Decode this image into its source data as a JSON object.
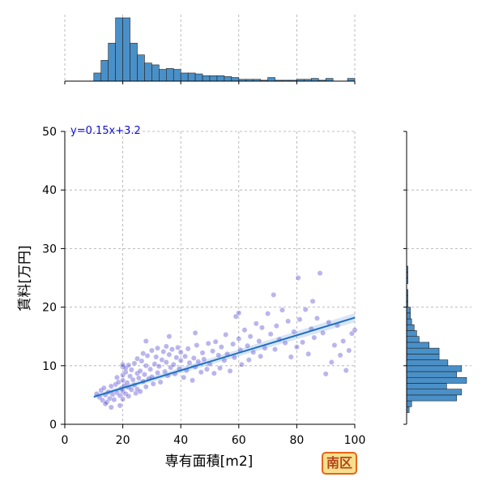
{
  "chart_data": {
    "type": "scatter",
    "title": "",
    "xlabel": "専有面積[m2]",
    "ylabel": "賃料[万円]",
    "xlim": [
      0,
      100
    ],
    "ylim": [
      0,
      50
    ],
    "xticks": [
      "0",
      "20",
      "40",
      "60",
      "80",
      "100"
    ],
    "yticks": [
      "0",
      "10",
      "20",
      "30",
      "40",
      "50"
    ],
    "grid": true,
    "regression": {
      "label": "y=0.15x+3.2",
      "slope": 0.15,
      "intercept": 3.2,
      "x_range": [
        10,
        100
      ]
    },
    "points": [
      {
        "x": 11,
        "y": 5.2
      },
      {
        "x": 12,
        "y": 4.6
      },
      {
        "x": 12.5,
        "y": 5.8
      },
      {
        "x": 13,
        "y": 4.1
      },
      {
        "x": 13.5,
        "y": 6.2
      },
      {
        "x": 14,
        "y": 5.0
      },
      {
        "x": 14.5,
        "y": 3.8
      },
      {
        "x": 15,
        "y": 5.5
      },
      {
        "x": 15.5,
        "y": 4.4
      },
      {
        "x": 16,
        "y": 6.5
      },
      {
        "x": 16.5,
        "y": 5.1
      },
      {
        "x": 17,
        "y": 4.2
      },
      {
        "x": 17.5,
        "y": 6.8
      },
      {
        "x": 18,
        "y": 5.4
      },
      {
        "x": 18.5,
        "y": 7.2
      },
      {
        "x": 19,
        "y": 4.9
      },
      {
        "x": 19.5,
        "y": 6.1
      },
      {
        "x": 20,
        "y": 5.6
      },
      {
        "x": 20,
        "y": 7.5
      },
      {
        "x": 20,
        "y": 9.8
      },
      {
        "x": 20,
        "y": 10.2
      },
      {
        "x": 20,
        "y": 8.4
      },
      {
        "x": 20,
        "y": 4.3
      },
      {
        "x": 20.5,
        "y": 6.6
      },
      {
        "x": 21,
        "y": 5.2
      },
      {
        "x": 21,
        "y": 8.9
      },
      {
        "x": 21,
        "y": 9.6
      },
      {
        "x": 21.5,
        "y": 7.1
      },
      {
        "x": 22,
        "y": 6.3
      },
      {
        "x": 22,
        "y": 10.1
      },
      {
        "x": 22,
        "y": 4.8
      },
      {
        "x": 22.5,
        "y": 8.2
      },
      {
        "x": 23,
        "y": 5.9
      },
      {
        "x": 23,
        "y": 9.3
      },
      {
        "x": 23.5,
        "y": 7.6
      },
      {
        "x": 24,
        "y": 6.7
      },
      {
        "x": 24,
        "y": 10.4
      },
      {
        "x": 24.5,
        "y": 5.3
      },
      {
        "x": 25,
        "y": 8.7
      },
      {
        "x": 25,
        "y": 6.0
      },
      {
        "x": 25,
        "y": 11.2
      },
      {
        "x": 25.5,
        "y": 7.9
      },
      {
        "x": 26,
        "y": 9.1
      },
      {
        "x": 26,
        "y": 5.6
      },
      {
        "x": 26.5,
        "y": 10.8
      },
      {
        "x": 27,
        "y": 7.3
      },
      {
        "x": 27,
        "y": 12.1
      },
      {
        "x": 27.5,
        "y": 8.5
      },
      {
        "x": 28,
        "y": 6.4
      },
      {
        "x": 28,
        "y": 10.0
      },
      {
        "x": 28.5,
        "y": 11.7
      },
      {
        "x": 29,
        "y": 7.8
      },
      {
        "x": 29.5,
        "y": 9.4
      },
      {
        "x": 30,
        "y": 8.1
      },
      {
        "x": 30,
        "y": 12.6
      },
      {
        "x": 30.5,
        "y": 6.9
      },
      {
        "x": 31,
        "y": 10.3
      },
      {
        "x": 31.5,
        "y": 11.5
      },
      {
        "x": 32,
        "y": 8.8
      },
      {
        "x": 32,
        "y": 13.0
      },
      {
        "x": 32.5,
        "y": 9.9
      },
      {
        "x": 33,
        "y": 7.2
      },
      {
        "x": 33.5,
        "y": 11.0
      },
      {
        "x": 34,
        "y": 12.4
      },
      {
        "x": 34.5,
        "y": 9.0
      },
      {
        "x": 35,
        "y": 10.6
      },
      {
        "x": 35,
        "y": 13.3
      },
      {
        "x": 35.5,
        "y": 8.3
      },
      {
        "x": 36,
        "y": 11.9
      },
      {
        "x": 36.5,
        "y": 9.7
      },
      {
        "x": 37,
        "y": 12.8
      },
      {
        "x": 37.5,
        "y": 10.2
      },
      {
        "x": 38,
        "y": 8.6
      },
      {
        "x": 38.5,
        "y": 11.4
      },
      {
        "x": 39,
        "y": 13.1
      },
      {
        "x": 39.5,
        "y": 9.5
      },
      {
        "x": 40,
        "y": 10.9
      },
      {
        "x": 40,
        "y": 12.3
      },
      {
        "x": 41,
        "y": 8.0
      },
      {
        "x": 41.5,
        "y": 11.6
      },
      {
        "x": 42,
        "y": 9.2
      },
      {
        "x": 42.5,
        "y": 12.9
      },
      {
        "x": 43,
        "y": 10.5
      },
      {
        "x": 44,
        "y": 7.5
      },
      {
        "x": 44.5,
        "y": 11.3
      },
      {
        "x": 45,
        "y": 9.8
      },
      {
        "x": 45.5,
        "y": 13.5
      },
      {
        "x": 46,
        "y": 10.7
      },
      {
        "x": 47,
        "y": 8.9
      },
      {
        "x": 47.5,
        "y": 12.2
      },
      {
        "x": 48,
        "y": 11.1
      },
      {
        "x": 49,
        "y": 9.4
      },
      {
        "x": 49.5,
        "y": 13.8
      },
      {
        "x": 50,
        "y": 10.3
      },
      {
        "x": 51,
        "y": 12.5
      },
      {
        "x": 51.5,
        "y": 8.7
      },
      {
        "x": 52,
        "y": 14.1
      },
      {
        "x": 53,
        "y": 11.8
      },
      {
        "x": 53.5,
        "y": 9.6
      },
      {
        "x": 54,
        "y": 13.2
      },
      {
        "x": 55,
        "y": 10.9
      },
      {
        "x": 55.5,
        "y": 15.3
      },
      {
        "x": 56,
        "y": 12.0
      },
      {
        "x": 57,
        "y": 9.1
      },
      {
        "x": 58,
        "y": 13.7
      },
      {
        "x": 58.5,
        "y": 11.4
      },
      {
        "x": 59,
        "y": 18.4
      },
      {
        "x": 60,
        "y": 14.6
      },
      {
        "x": 60.5,
        "y": 12.7
      },
      {
        "x": 61,
        "y": 10.2
      },
      {
        "x": 62,
        "y": 16.1
      },
      {
        "x": 63,
        "y": 13.4
      },
      {
        "x": 63.5,
        "y": 11.0
      },
      {
        "x": 64,
        "y": 15.0
      },
      {
        "x": 65,
        "y": 12.3
      },
      {
        "x": 66,
        "y": 17.2
      },
      {
        "x": 67,
        "y": 14.2
      },
      {
        "x": 67.5,
        "y": 11.6
      },
      {
        "x": 68,
        "y": 16.5
      },
      {
        "x": 69,
        "y": 13.0
      },
      {
        "x": 70,
        "y": 18.9
      },
      {
        "x": 71,
        "y": 15.4
      },
      {
        "x": 72,
        "y": 22.1
      },
      {
        "x": 72.5,
        "y": 12.8
      },
      {
        "x": 73,
        "y": 16.8
      },
      {
        "x": 74,
        "y": 14.5
      },
      {
        "x": 75,
        "y": 19.5
      },
      {
        "x": 76,
        "y": 13.9
      },
      {
        "x": 77,
        "y": 17.6
      },
      {
        "x": 78,
        "y": 11.5
      },
      {
        "x": 79,
        "y": 15.8
      },
      {
        "x": 80,
        "y": 13.2
      },
      {
        "x": 80.5,
        "y": 25.0
      },
      {
        "x": 81,
        "y": 17.9
      },
      {
        "x": 82,
        "y": 14.0
      },
      {
        "x": 83,
        "y": 19.6
      },
      {
        "x": 84,
        "y": 12.0
      },
      {
        "x": 85,
        "y": 16.3
      },
      {
        "x": 85.5,
        "y": 21.0
      },
      {
        "x": 86,
        "y": 14.8
      },
      {
        "x": 87,
        "y": 18.1
      },
      {
        "x": 88,
        "y": 25.8
      },
      {
        "x": 89,
        "y": 15.6
      },
      {
        "x": 90,
        "y": 8.6
      },
      {
        "x": 91,
        "y": 17.4
      },
      {
        "x": 92,
        "y": 10.6
      },
      {
        "x": 93,
        "y": 13.5
      },
      {
        "x": 94,
        "y": 16.9
      },
      {
        "x": 95,
        "y": 11.8
      },
      {
        "x": 96,
        "y": 14.2
      },
      {
        "x": 97,
        "y": 9.2
      },
      {
        "x": 98,
        "y": 12.6
      },
      {
        "x": 99,
        "y": 15.5
      },
      {
        "x": 100,
        "y": 16.1
      },
      {
        "x": 60,
        "y": 19.0
      },
      {
        "x": 45,
        "y": 15.6
      },
      {
        "x": 36,
        "y": 15.0
      },
      {
        "x": 28,
        "y": 14.2
      },
      {
        "x": 18,
        "y": 8.0
      },
      {
        "x": 14,
        "y": 3.5
      },
      {
        "x": 16,
        "y": 2.9
      },
      {
        "x": 19,
        "y": 3.2
      }
    ],
    "marginal_x": {
      "type": "histogram",
      "bin_edges": [
        0,
        2.5,
        5,
        7.5,
        10,
        12.5,
        15,
        17.5,
        20,
        22.5,
        25,
        27.5,
        30,
        32.5,
        35,
        37.5,
        40,
        42.5,
        45,
        47.5,
        50,
        52.5,
        55,
        57.5,
        60,
        62.5,
        65,
        67.5,
        70,
        72.5,
        75,
        77.5,
        80,
        82.5,
        85,
        87.5,
        90,
        92.5,
        95,
        97.5,
        100
      ],
      "counts": [
        0,
        0,
        0,
        0,
        9,
        23,
        42,
        70,
        70,
        42,
        29,
        20,
        18,
        13,
        14,
        13,
        9,
        9,
        8,
        6,
        6,
        6,
        5,
        4,
        2,
        2,
        2,
        1,
        4,
        1,
        1,
        1,
        2,
        2,
        3,
        1,
        3,
        0,
        0,
        3
      ]
    },
    "marginal_y": {
      "type": "histogram",
      "bin_edges": [
        0,
        1,
        2,
        3,
        4,
        5,
        6,
        7,
        8,
        9,
        10,
        11,
        12,
        13,
        14,
        15,
        16,
        17,
        18,
        19,
        20,
        21,
        22,
        23,
        24,
        25,
        26,
        27
      ],
      "counts": [
        0,
        0,
        2,
        4,
        40,
        44,
        32,
        48,
        40,
        44,
        33,
        26,
        26,
        18,
        10,
        8,
        6,
        4,
        3,
        3,
        1,
        1,
        1,
        0,
        1,
        1,
        1,
        0
      ]
    }
  },
  "badge": {
    "text": "南区"
  }
}
